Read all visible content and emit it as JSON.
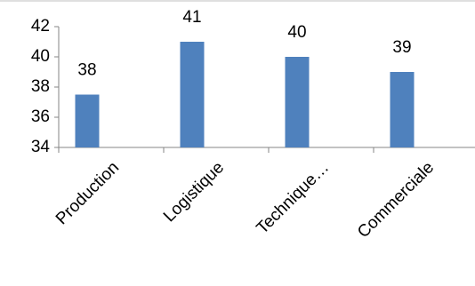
{
  "chart_data": {
    "type": "bar",
    "categories": [
      "Production",
      "Logistique",
      "Technique…",
      "Commerciale"
    ],
    "values": [
      37.5,
      41,
      40,
      39
    ],
    "value_labels": [
      "38",
      "41",
      "40",
      "39"
    ],
    "color": "#4f81bd",
    "ylim": [
      34,
      42
    ],
    "yticks": [
      34,
      36,
      38,
      40,
      42
    ],
    "grid": false
  }
}
